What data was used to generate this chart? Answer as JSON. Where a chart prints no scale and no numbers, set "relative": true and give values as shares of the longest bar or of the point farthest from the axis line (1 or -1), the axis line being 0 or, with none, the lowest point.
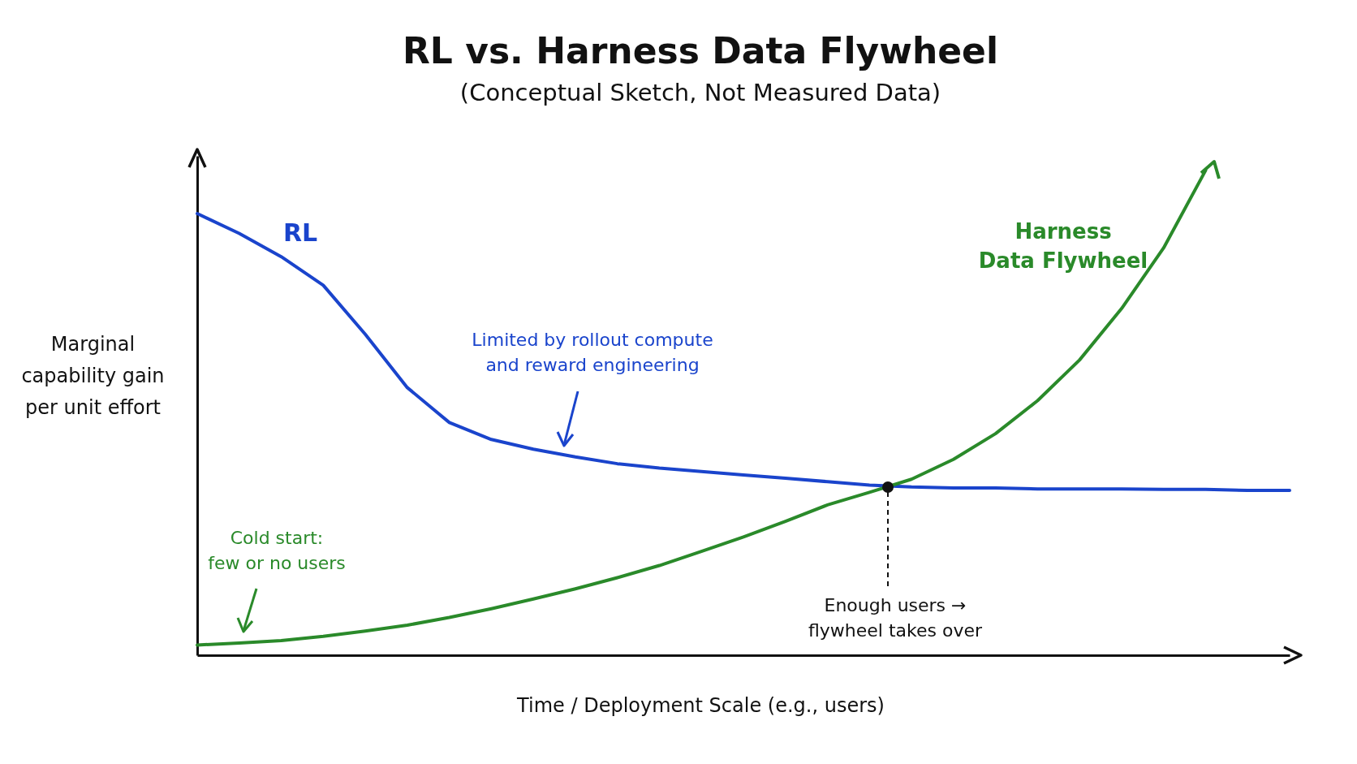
{
  "chart_data": {
    "type": "line",
    "title": "RL vs. Harness Data Flywheel",
    "subtitle": "(Conceptual Sketch, Not Measured Data)",
    "xlabel": "Time / Deployment Scale (e.g., users)",
    "ylabel": "Marginal capability gain per unit effort",
    "relative": true,
    "tick_labels": false,
    "grid": false,
    "marker": "none",
    "categories": [
      null,
      null,
      null,
      null,
      null,
      null,
      null,
      null,
      null,
      null,
      null,
      null,
      null,
      null,
      null,
      null,
      null,
      null,
      null,
      null,
      null,
      null,
      null,
      null,
      null,
      null,
      null
    ],
    "series": [
      {
        "name": "RL",
        "color": "#1a44cc",
        "values": [
          0.911,
          0.87,
          0.822,
          0.763,
          0.662,
          0.552,
          0.48,
          0.445,
          0.425,
          0.409,
          0.395,
          0.386,
          0.379,
          0.372,
          0.365,
          0.358,
          0.351,
          0.347,
          0.345,
          0.345,
          0.343,
          0.343,
          0.343,
          0.342,
          0.342,
          0.34,
          0.34
        ]
      },
      {
        "name": "Harness Data Flywheel",
        "color": "#2a8a2a",
        "values": [
          0.021,
          0.025,
          0.03,
          0.039,
          0.05,
          0.062,
          0.078,
          0.096,
          0.116,
          0.137,
          0.16,
          0.185,
          0.214,
          0.244,
          0.276,
          0.31,
          0.336,
          0.363,
          0.404,
          0.457,
          0.525,
          0.609,
          0.715,
          0.84,
          1,
          null,
          null
        ]
      }
    ],
    "annotations": [
      "Limited by rollout compute and reward engineering",
      "Cold start: few or no users",
      "Enough users → flywheel takes over"
    ]
  }
}
